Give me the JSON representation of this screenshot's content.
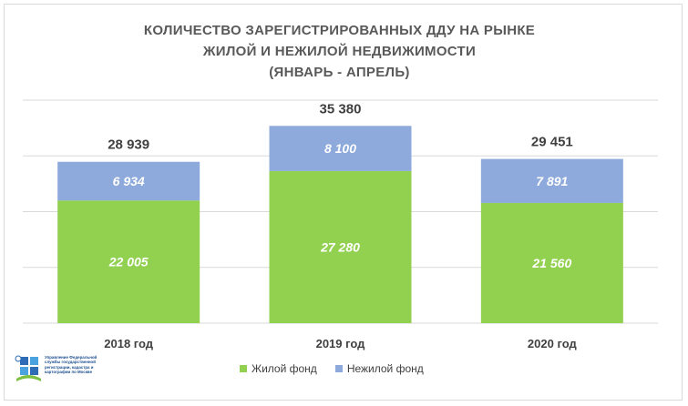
{
  "title_lines": [
    "КОЛИЧЕСТВО ЗАРЕГИСТРИРОВАННЫХ ДДУ НА РЫНКЕ",
    "ЖИЛОЙ И НЕЖИЛОЙ НЕДВИЖИМОСТИ",
    "(ЯНВАРЬ - АПРЕЛЬ)"
  ],
  "logo_lines": [
    "Управление Федеральной",
    "службы государственной",
    "регистрации, кадастра и",
    "картографии по Москве"
  ],
  "chart_data": {
    "type": "bar",
    "stacked": true,
    "categories": [
      "2018 год",
      "2019 год",
      "2020 год"
    ],
    "series": [
      {
        "name": "Жилой фонд",
        "values": [
          22005,
          27280,
          21560
        ],
        "labels": [
          "22 005",
          "27 280",
          "21 560"
        ],
        "color": "#92d050"
      },
      {
        "name": "Нежилой фонд",
        "values": [
          6934,
          8100,
          7891
        ],
        "labels": [
          "6 934",
          "8 100",
          "7 891"
        ],
        "color": "#8ea9db"
      }
    ],
    "totals": [
      28939,
      35380,
      29451
    ],
    "total_labels": [
      "28 939",
      "35 380",
      "29 451"
    ],
    "ylim": [
      0,
      40000
    ],
    "grid": true,
    "legend_position": "bottom"
  },
  "colors": {
    "residential": "#92d050",
    "non_residential": "#8ea9db",
    "grid": "#d9d9d9",
    "text": "#404040",
    "logo": "#1d4f91"
  }
}
